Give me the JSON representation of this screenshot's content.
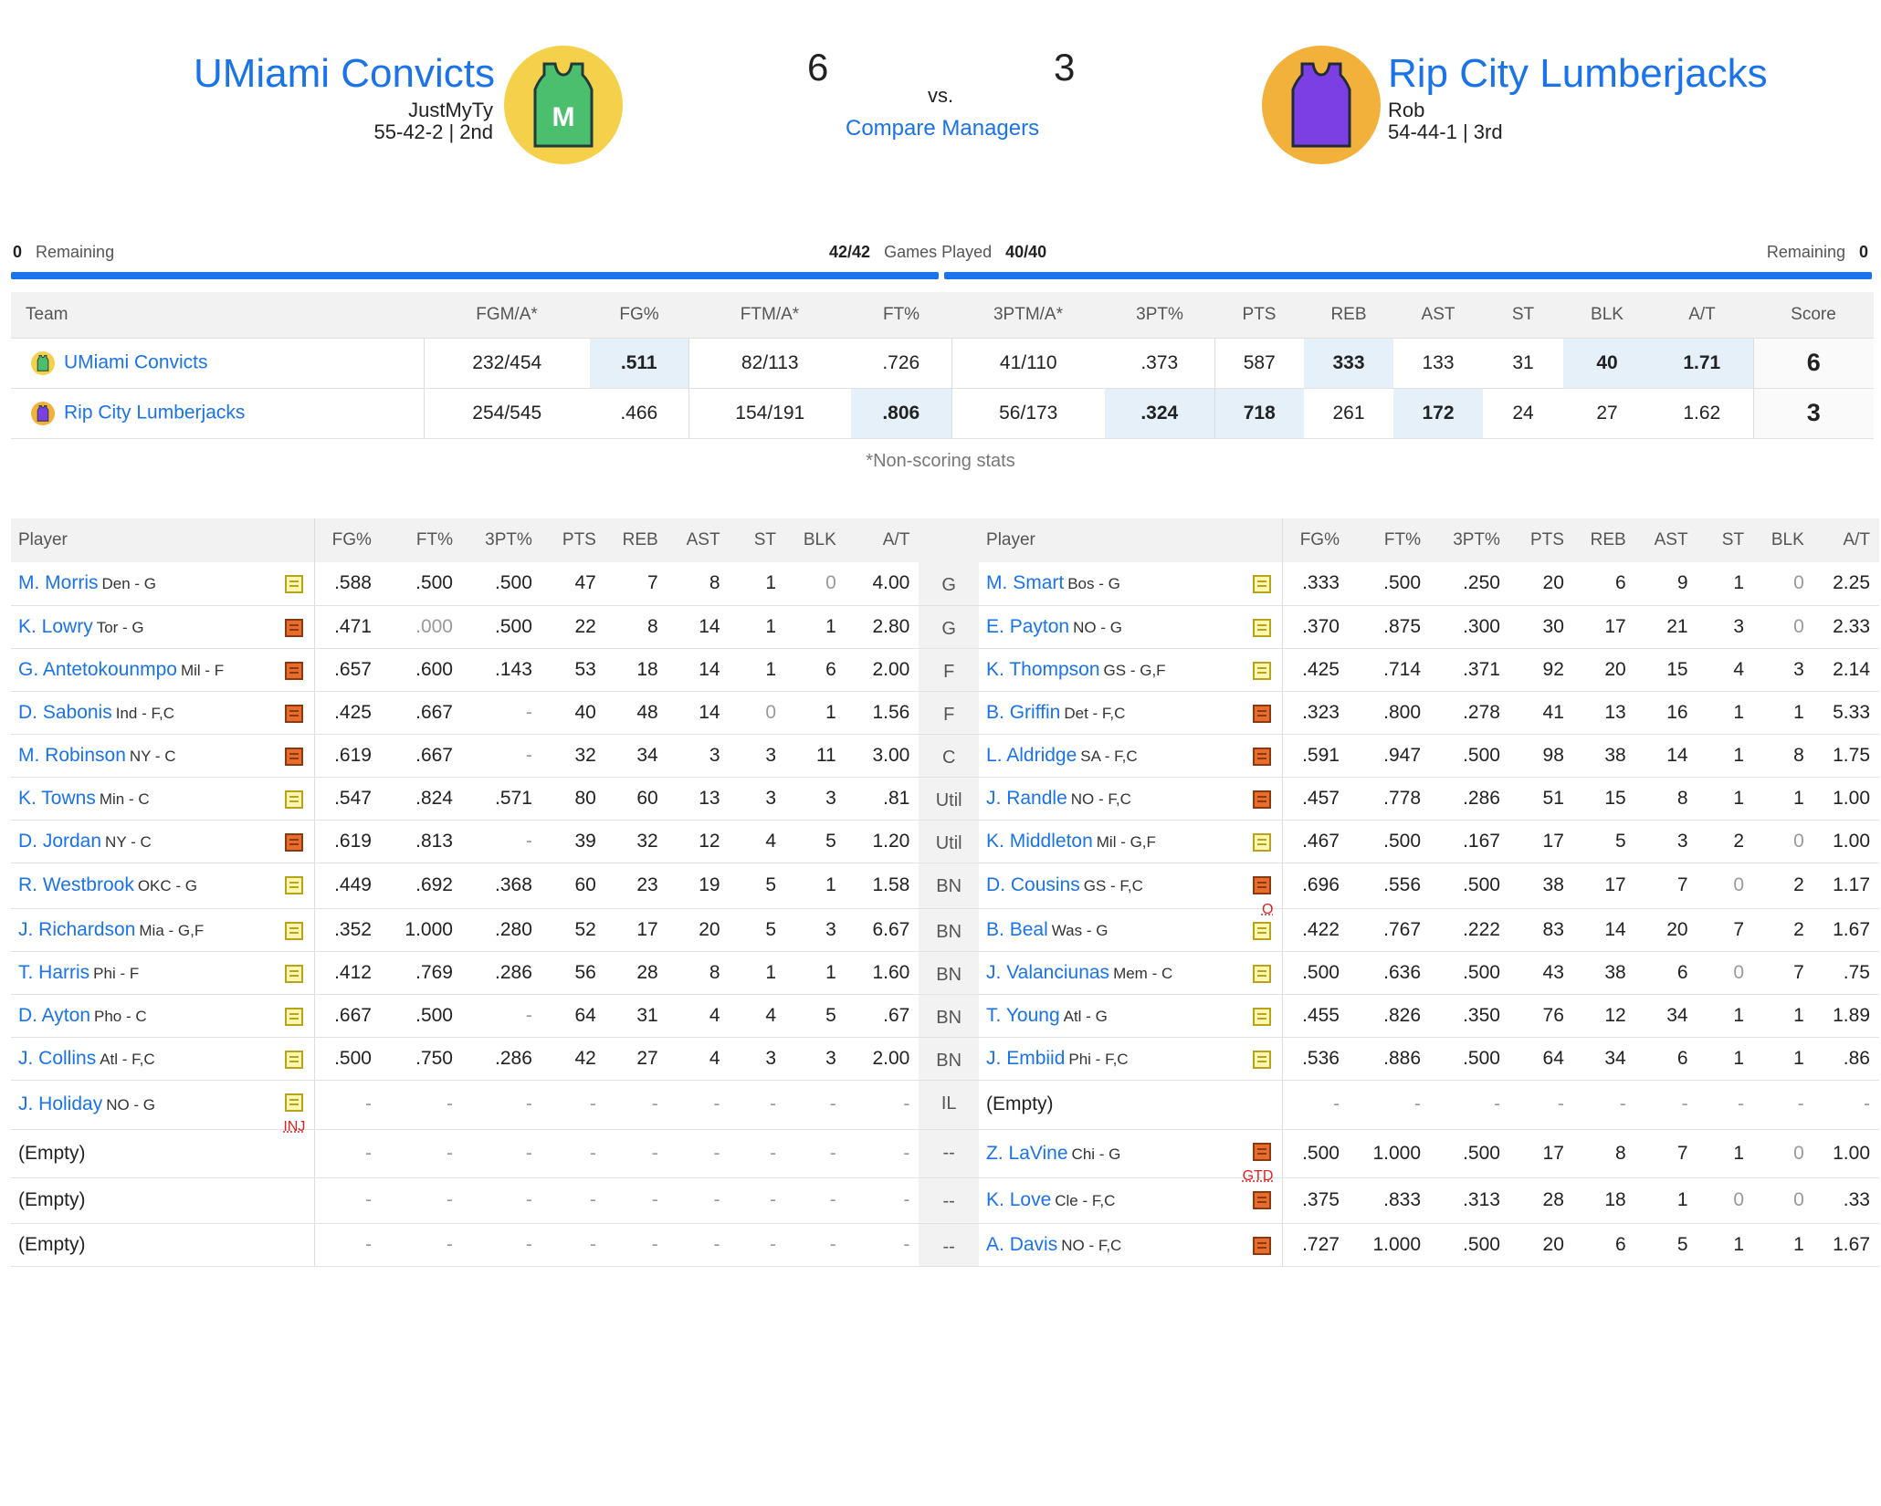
{
  "matchup": {
    "left": {
      "name": "UMiami Convicts",
      "manager": "JustMyTy",
      "record": "55-42-2 | 2nd",
      "score": "6",
      "remaining_label": "Remaining",
      "remaining": "0",
      "games_played": "42/42",
      "logo_color": "#f5d04a",
      "jersey_color": "#4cbf6e",
      "logo_letter": "M"
    },
    "right": {
      "name": "Rip City Lumberjacks",
      "manager": "Rob",
      "record": "54-44-1 | 3rd",
      "score": "3",
      "remaining_label": "Remaining",
      "remaining": "0",
      "games_played": "40/40",
      "logo_color": "#f2b13b",
      "jersey_color": "#7b3fe4"
    },
    "vs": "vs.",
    "compare_link": "Compare Managers",
    "games_played_label": "Games Played"
  },
  "summary": {
    "headers": [
      "Team",
      "FGM/A*",
      "FG%",
      "FTM/A*",
      "FT%",
      "3PTM/A*",
      "3PT%",
      "PTS",
      "REB",
      "AST",
      "ST",
      "BLK",
      "A/T",
      "Score"
    ],
    "rows": [
      {
        "team": "UMiami Convicts",
        "cells": [
          "232/454",
          ".511",
          "82/113",
          ".726",
          "41/110",
          ".373",
          "587",
          "333",
          "133",
          "31",
          "40",
          "1.71"
        ],
        "score": "6"
      },
      {
        "team": "Rip City Lumberjacks",
        "cells": [
          "254/545",
          ".466",
          "154/191",
          ".806",
          "56/173",
          ".324",
          "718",
          "261",
          "172",
          "24",
          "27",
          "1.62"
        ],
        "score": "3"
      }
    ],
    "note": "*Non-scoring stats"
  },
  "roster": {
    "headers": [
      "Player",
      "FG%",
      "FT%",
      "3PT%",
      "PTS",
      "REB",
      "AST",
      "ST",
      "BLK",
      "A/T"
    ],
    "rows": [
      {
        "pos": "G",
        "l": {
          "name": "M. Morris",
          "info": "Den - G",
          "note": "y",
          "stats": [
            ".588",
            ".500",
            ".500",
            "47",
            "7",
            "8",
            "1",
            "0",
            "4.00"
          ]
        },
        "r": {
          "name": "M. Smart",
          "info": "Bos - G",
          "note": "y",
          "stats": [
            ".333",
            ".500",
            ".250",
            "20",
            "6",
            "9",
            "1",
            "0",
            "2.25"
          ]
        }
      },
      {
        "pos": "G",
        "l": {
          "name": "K. Lowry",
          "info": "Tor - G",
          "note": "o",
          "stats": [
            ".471",
            ".000",
            ".500",
            "22",
            "8",
            "14",
            "1",
            "1",
            "2.80"
          ]
        },
        "r": {
          "name": "E. Payton",
          "info": "NO - G",
          "note": "y",
          "stats": [
            ".370",
            ".875",
            ".300",
            "30",
            "17",
            "21",
            "3",
            "0",
            "2.33"
          ]
        }
      },
      {
        "pos": "F",
        "l": {
          "name": "G. Antetokounmpo",
          "info": "Mil - F",
          "note": "o",
          "stats": [
            ".657",
            ".600",
            ".143",
            "53",
            "18",
            "14",
            "1",
            "6",
            "2.00"
          ]
        },
        "r": {
          "name": "K. Thompson",
          "info": "GS - G,F",
          "note": "y",
          "stats": [
            ".425",
            ".714",
            ".371",
            "92",
            "20",
            "15",
            "4",
            "3",
            "2.14"
          ]
        }
      },
      {
        "pos": "F",
        "l": {
          "name": "D. Sabonis",
          "info": "Ind - F,C",
          "note": "o",
          "stats": [
            ".425",
            ".667",
            "-",
            "40",
            "48",
            "14",
            "0",
            "1",
            "1.56"
          ]
        },
        "r": {
          "name": "B. Griffin",
          "info": "Det - F,C",
          "note": "o",
          "stats": [
            ".323",
            ".800",
            ".278",
            "41",
            "13",
            "16",
            "1",
            "1",
            "5.33"
          ]
        }
      },
      {
        "pos": "C",
        "l": {
          "name": "M. Robinson",
          "info": "NY - C",
          "note": "o",
          "stats": [
            ".619",
            ".667",
            "-",
            "32",
            "34",
            "3",
            "3",
            "11",
            "3.00"
          ]
        },
        "r": {
          "name": "L. Aldridge",
          "info": "SA - F,C",
          "note": "o",
          "stats": [
            ".591",
            ".947",
            ".500",
            "98",
            "38",
            "14",
            "1",
            "8",
            "1.75"
          ]
        }
      },
      {
        "pos": "Util",
        "l": {
          "name": "K. Towns",
          "info": "Min - C",
          "note": "y",
          "stats": [
            ".547",
            ".824",
            ".571",
            "80",
            "60",
            "13",
            "3",
            "3",
            ".81"
          ]
        },
        "r": {
          "name": "J. Randle",
          "info": "NO - F,C",
          "note": "o",
          "stats": [
            ".457",
            ".778",
            ".286",
            "51",
            "15",
            "8",
            "1",
            "1",
            "1.00"
          ]
        }
      },
      {
        "pos": "Util",
        "l": {
          "name": "D. Jordan",
          "info": "NY - C",
          "note": "o",
          "stats": [
            ".619",
            ".813",
            "-",
            "39",
            "32",
            "12",
            "4",
            "5",
            "1.20"
          ]
        },
        "r": {
          "name": "K. Middleton",
          "info": "Mil - G,F",
          "note": "y",
          "stats": [
            ".467",
            ".500",
            ".167",
            "17",
            "5",
            "3",
            "2",
            "0",
            "1.00"
          ]
        }
      },
      {
        "pos": "BN",
        "l": {
          "name": "R. Westbrook",
          "info": "OKC - G",
          "note": "y",
          "stats": [
            ".449",
            ".692",
            ".368",
            "60",
            "23",
            "19",
            "5",
            "1",
            "1.58"
          ]
        },
        "r": {
          "name": "D. Cousins",
          "info": "GS - F,C",
          "note": "o",
          "tag": "O",
          "stats": [
            ".696",
            ".556",
            ".500",
            "38",
            "17",
            "7",
            "0",
            "2",
            "1.17"
          ]
        }
      },
      {
        "pos": "BN",
        "l": {
          "name": "J. Richardson",
          "info": "Mia - G,F",
          "note": "y",
          "stats": [
            ".352",
            "1.000",
            ".280",
            "52",
            "17",
            "20",
            "5",
            "3",
            "6.67"
          ]
        },
        "r": {
          "name": "B. Beal",
          "info": "Was - G",
          "note": "y",
          "stats": [
            ".422",
            ".767",
            ".222",
            "83",
            "14",
            "20",
            "7",
            "2",
            "1.67"
          ]
        }
      },
      {
        "pos": "BN",
        "l": {
          "name": "T. Harris",
          "info": "Phi - F",
          "note": "y",
          "stats": [
            ".412",
            ".769",
            ".286",
            "56",
            "28",
            "8",
            "1",
            "1",
            "1.60"
          ]
        },
        "r": {
          "name": "J. Valanciunas",
          "info": "Mem - C",
          "note": "y",
          "stats": [
            ".500",
            ".636",
            ".500",
            "43",
            "38",
            "6",
            "0",
            "7",
            ".75"
          ]
        }
      },
      {
        "pos": "BN",
        "l": {
          "name": "D. Ayton",
          "info": "Pho - C",
          "note": "y",
          "stats": [
            ".667",
            ".500",
            "-",
            "64",
            "31",
            "4",
            "4",
            "5",
            ".67"
          ]
        },
        "r": {
          "name": "T. Young",
          "info": "Atl - G",
          "note": "y",
          "stats": [
            ".455",
            ".826",
            ".350",
            "76",
            "12",
            "34",
            "1",
            "1",
            "1.89"
          ]
        }
      },
      {
        "pos": "BN",
        "l": {
          "name": "J. Collins",
          "info": "Atl - F,C",
          "note": "y",
          "stats": [
            ".500",
            ".750",
            ".286",
            "42",
            "27",
            "4",
            "3",
            "3",
            "2.00"
          ]
        },
        "r": {
          "name": "J. Embiid",
          "info": "Phi - F,C",
          "note": "y",
          "stats": [
            ".536",
            ".886",
            ".500",
            "64",
            "34",
            "6",
            "1",
            "1",
            ".86"
          ]
        }
      },
      {
        "pos": "IL",
        "l": {
          "name": "J. Holiday",
          "info": "NO - G",
          "note": "y",
          "tag": "INJ",
          "stats": [
            "-",
            "-",
            "-",
            "-",
            "-",
            "-",
            "-",
            "-",
            "-"
          ]
        },
        "r": {
          "empty": "(Empty)",
          "stats": [
            "-",
            "-",
            "-",
            "-",
            "-",
            "-",
            "-",
            "-",
            "-"
          ]
        }
      },
      {
        "pos": "--",
        "l": {
          "empty": "(Empty)",
          "stats": [
            "-",
            "-",
            "-",
            "-",
            "-",
            "-",
            "-",
            "-",
            "-"
          ]
        },
        "r": {
          "name": "Z. LaVine",
          "info": "Chi - G",
          "note": "o",
          "tag": "GTD",
          "stats": [
            ".500",
            "1.000",
            ".500",
            "17",
            "8",
            "7",
            "1",
            "0",
            "1.00"
          ]
        }
      },
      {
        "pos": "--",
        "l": {
          "empty": "(Empty)",
          "stats": [
            "-",
            "-",
            "-",
            "-",
            "-",
            "-",
            "-",
            "-",
            "-"
          ]
        },
        "r": {
          "name": "K. Love",
          "info": "Cle - F,C",
          "note": "o",
          "stats": [
            ".375",
            ".833",
            ".313",
            "28",
            "18",
            "1",
            "0",
            "0",
            ".33"
          ]
        }
      },
      {
        "pos": "--",
        "l": {
          "empty": "(Empty)",
          "stats": [
            "-",
            "-",
            "-",
            "-",
            "-",
            "-",
            "-",
            "-",
            "-"
          ]
        },
        "r": {
          "name": "A. Davis",
          "info": "NO - F,C",
          "note": "o",
          "stats": [
            ".727",
            "1.000",
            ".500",
            "20",
            "6",
            "5",
            "1",
            "1",
            "1.67"
          ]
        }
      }
    ]
  }
}
